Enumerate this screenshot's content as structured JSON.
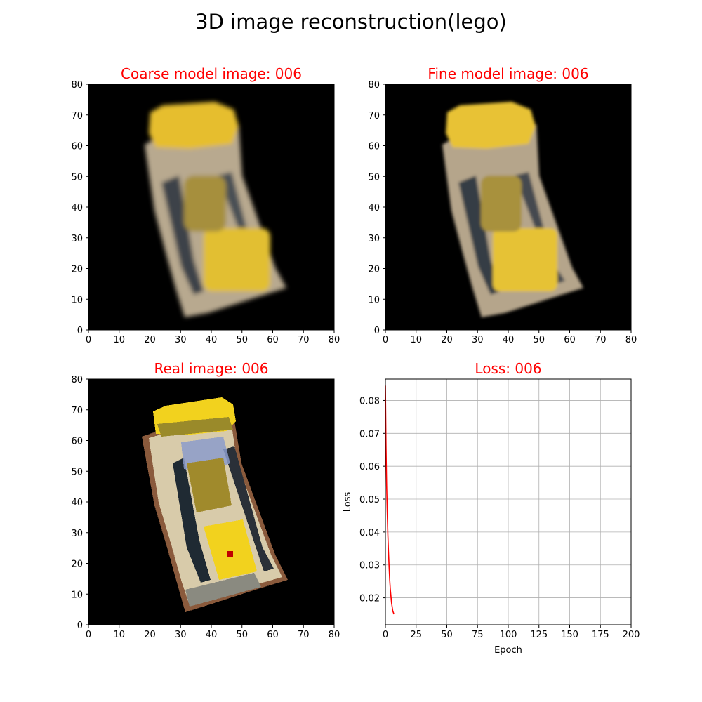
{
  "figure": {
    "title": "3D image reconstruction(lego)",
    "title_color": "#000000",
    "panel_title_color": "#ff0000",
    "image_background": "#000000"
  },
  "chart_data": [
    {
      "type": "heatmap",
      "title": "Coarse model image: 006",
      "xlim": [
        0,
        80
      ],
      "ylim": [
        0,
        80
      ],
      "xticks": [
        "0",
        "10",
        "20",
        "30",
        "40",
        "50",
        "60",
        "70",
        "80"
      ],
      "yticks": [
        "0",
        "10",
        "20",
        "30",
        "40",
        "50",
        "60",
        "70",
        "80"
      ],
      "palette": {
        "yellow": "#e6be2e",
        "beige": "#c9b79d",
        "shadow": "#3a4148"
      }
    },
    {
      "type": "heatmap",
      "title": "Fine model image: 006",
      "xlim": [
        0,
        80
      ],
      "ylim": [
        0,
        80
      ],
      "xticks": [
        "0",
        "10",
        "20",
        "30",
        "40",
        "50",
        "60",
        "70",
        "80"
      ],
      "yticks": [
        "0",
        "10",
        "20",
        "30",
        "40",
        "50",
        "60",
        "70",
        "80"
      ],
      "palette": {
        "yellow": "#e8c235",
        "beige": "#c7b59a",
        "shadow": "#353c44"
      }
    },
    {
      "type": "heatmap",
      "title": "Real image: 006",
      "xlim": [
        0,
        80
      ],
      "ylim": [
        0,
        80
      ],
      "xticks": [
        "0",
        "10",
        "20",
        "30",
        "40",
        "50",
        "60",
        "70",
        "80"
      ],
      "yticks": [
        "0",
        "10",
        "20",
        "30",
        "40",
        "50",
        "60",
        "70",
        "80"
      ],
      "palette": {
        "yellow": "#f2d21e",
        "beige": "#d8cbaa",
        "shadow": "#1f2a33",
        "brown": "#8a5a3c",
        "blue": "#8c9ccb",
        "olive": "#9a8a2a",
        "red": "#c00000"
      }
    },
    {
      "type": "line",
      "title": "Loss: 006",
      "xlabel": "Epoch",
      "ylabel": "Loss",
      "xlim": [
        0,
        200
      ],
      "ylim": [
        0.0118,
        0.0865
      ],
      "xticks": [
        0,
        25,
        50,
        75,
        100,
        125,
        150,
        175,
        200
      ],
      "yticks": [
        0.02,
        0.03,
        0.04,
        0.05,
        0.06,
        0.07,
        0.08
      ],
      "grid": true,
      "series": [
        {
          "color": "#ff0000",
          "x": [
            0,
            0.5,
            1,
            1.5,
            2,
            2.5,
            3,
            3.5,
            4,
            5,
            6,
            7
          ],
          "y": [
            0.0845,
            0.066,
            0.054,
            0.046,
            0.039,
            0.034,
            0.0295,
            0.0255,
            0.0225,
            0.0185,
            0.016,
            0.015
          ]
        }
      ]
    }
  ]
}
